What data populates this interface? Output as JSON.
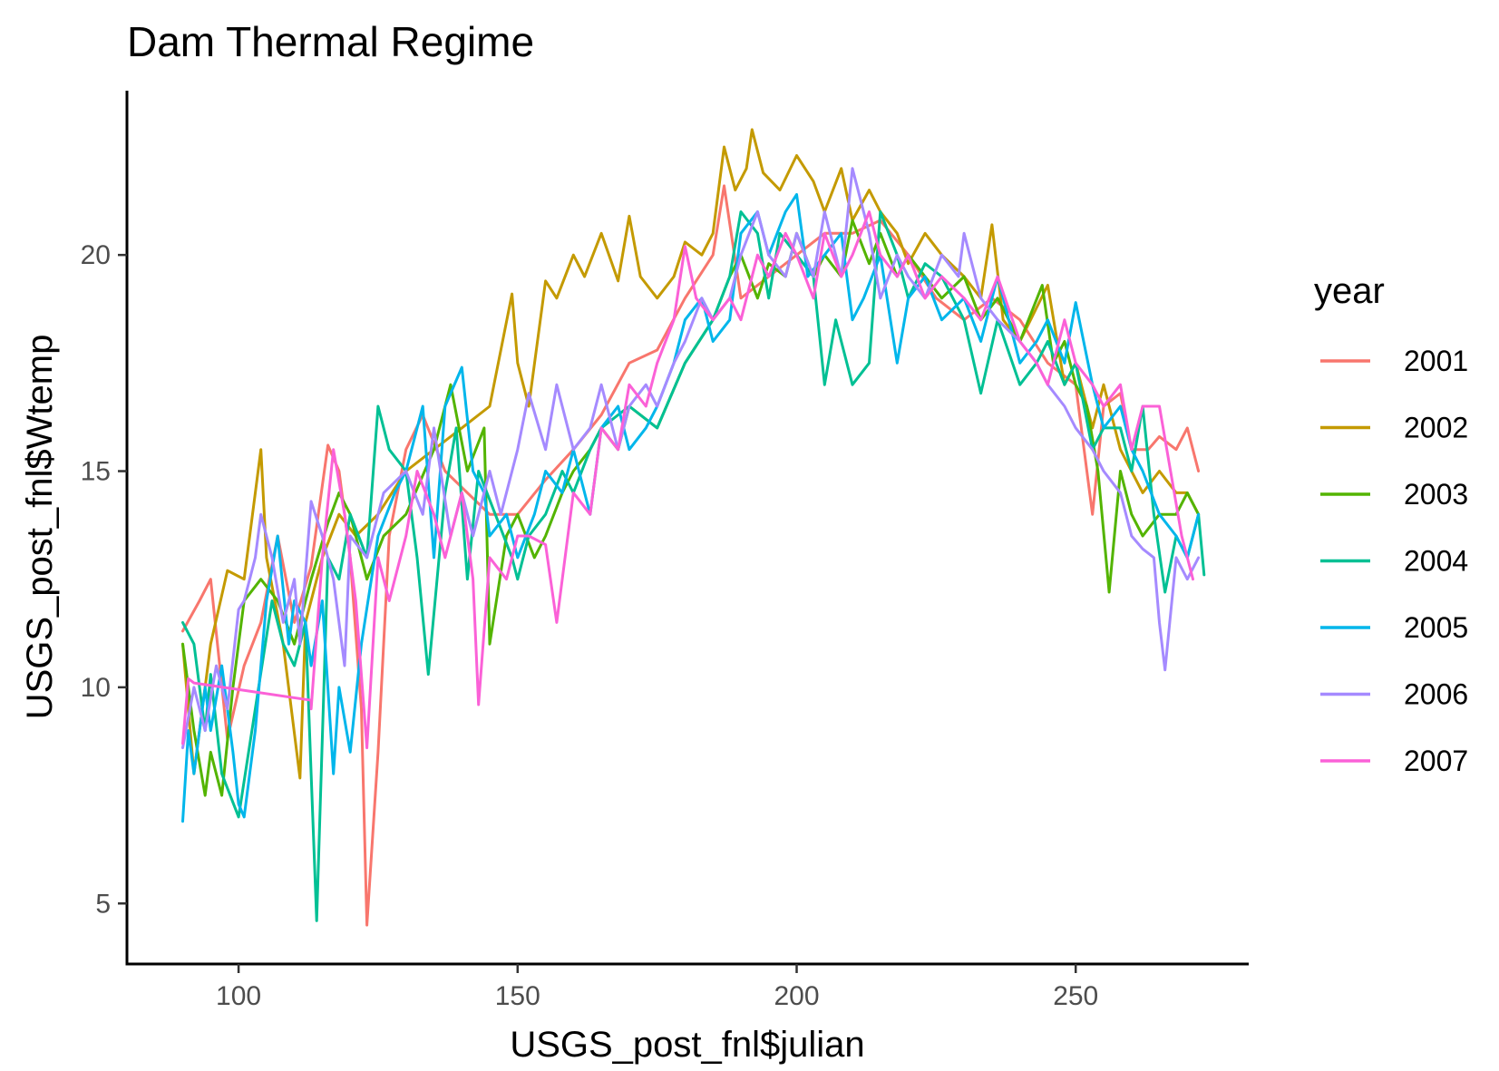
{
  "chart_data": {
    "type": "line",
    "title": "Dam Thermal Regime",
    "xlabel": "USGS_post_fnl$julian",
    "ylabel": "USGS_post_fnl$Wtemp",
    "xlim": [
      80,
      281
    ],
    "ylim": [
      3.6,
      23.8
    ],
    "x_ticks": [
      100,
      150,
      200,
      250
    ],
    "y_ticks": [
      5,
      10,
      15,
      20
    ],
    "x_tick_labels": [
      "100",
      "150",
      "200",
      "250"
    ],
    "y_tick_labels": [
      "5",
      "10",
      "15",
      "20"
    ],
    "grid": false,
    "legend": {
      "title": "year",
      "position": "right"
    },
    "series": [
      {
        "name": "2001",
        "color": "#F8766D",
        "x": [
          90,
          93,
          95,
          98,
          101,
          104,
          107,
          110,
          113,
          116,
          118,
          120,
          122,
          123,
          125,
          127,
          130,
          133,
          137,
          141,
          145,
          150,
          155,
          160,
          165,
          170,
          175,
          180,
          185,
          187,
          190,
          195,
          200,
          205,
          210,
          215,
          220,
          225,
          230,
          235,
          240,
          245,
          250,
          253,
          255,
          258,
          260,
          263,
          265,
          268,
          270,
          272
        ],
        "y": [
          11.3,
          12.0,
          12.5,
          8.8,
          10.5,
          11.5,
          13.5,
          11.5,
          12.8,
          15.6,
          15.0,
          13.0,
          9.5,
          4.5,
          8.5,
          13.5,
          15.5,
          16.3,
          15.0,
          14.5,
          14.0,
          14.0,
          14.8,
          15.5,
          16.3,
          17.5,
          17.8,
          19.0,
          20.0,
          21.6,
          19.0,
          19.5,
          20.0,
          20.5,
          20.5,
          20.8,
          20.0,
          19.0,
          18.5,
          19.0,
          18.5,
          17.5,
          17.0,
          14.0,
          16.5,
          16.8,
          15.5,
          15.5,
          15.8,
          15.5,
          16.0,
          15.0
        ]
      },
      {
        "name": "2002",
        "color": "#C49A00",
        "x": [
          90,
          92,
          95,
          98,
          101,
          104,
          105,
          108,
          111,
          112,
          115,
          118,
          121,
          125,
          130,
          135,
          140,
          145,
          149,
          150,
          152,
          155,
          157,
          160,
          162,
          165,
          168,
          170,
          172,
          175,
          178,
          180,
          183,
          185,
          187,
          189,
          191,
          192,
          194,
          197,
          200,
          203,
          205,
          208,
          210,
          213,
          215,
          218,
          220,
          223,
          226,
          230,
          233,
          235,
          237,
          240,
          245,
          248,
          250,
          253,
          255,
          258,
          262,
          265,
          268,
          270,
          272
        ],
        "y": [
          11.0,
          8.0,
          11.0,
          12.7,
          12.5,
          15.5,
          13.0,
          11.0,
          7.9,
          11.5,
          13.0,
          14.0,
          13.5,
          14.0,
          15.0,
          15.5,
          16.0,
          16.5,
          19.1,
          17.5,
          16.5,
          19.4,
          19.0,
          20.0,
          19.5,
          20.5,
          19.4,
          20.9,
          19.5,
          19.0,
          19.5,
          20.3,
          20.0,
          20.5,
          22.5,
          21.5,
          22.0,
          22.9,
          21.9,
          21.5,
          22.3,
          21.7,
          21.0,
          22.0,
          20.8,
          21.5,
          21.0,
          20.5,
          19.8,
          20.5,
          20.0,
          19.5,
          19.0,
          20.7,
          18.5,
          18.0,
          19.3,
          17.0,
          17.5,
          16.0,
          17.0,
          15.5,
          14.5,
          15.0,
          14.5,
          14.5,
          14.0
        ]
      },
      {
        "name": "2003",
        "color": "#53B400",
        "x": [
          90,
          92,
          94,
          95,
          97,
          99,
          101,
          104,
          107,
          110,
          113,
          116,
          118,
          120,
          123,
          126,
          130,
          135,
          138,
          141,
          144,
          145,
          148,
          150,
          153,
          155,
          158,
          160,
          163,
          165,
          168,
          170,
          175,
          180,
          185,
          188,
          190,
          193,
          195,
          198,
          200,
          203,
          205,
          208,
          210,
          213,
          215,
          218,
          220,
          223,
          226,
          230,
          233,
          236,
          240,
          244,
          246,
          248,
          250,
          252,
          254,
          256,
          258,
          260,
          262,
          265,
          268,
          270,
          272
        ],
        "y": [
          11.0,
          9.0,
          7.5,
          8.5,
          7.5,
          10.0,
          12.0,
          12.5,
          12.0,
          11.0,
          12.5,
          13.8,
          14.5,
          14.0,
          12.5,
          13.5,
          14.0,
          15.5,
          17.0,
          15.0,
          16.0,
          11.0,
          13.5,
          14.0,
          13.0,
          13.5,
          14.5,
          15.0,
          15.5,
          16.0,
          15.5,
          16.5,
          16.0,
          17.5,
          18.5,
          19.5,
          20.0,
          19.0,
          19.8,
          19.5,
          20.5,
          19.5,
          20.0,
          19.5,
          20.8,
          19.8,
          20.5,
          19.5,
          20.0,
          19.5,
          19.0,
          19.5,
          18.5,
          19.0,
          18.0,
          19.3,
          17.5,
          18.0,
          17.0,
          16.5,
          15.0,
          12.2,
          15.0,
          14.0,
          13.5,
          14.0,
          14.0,
          14.5,
          14.0
        ]
      },
      {
        "name": "2004",
        "color": "#00C094",
        "x": [
          90,
          92,
          94,
          95,
          97,
          100,
          103,
          106,
          108,
          110,
          112,
          113,
          114,
          116,
          118,
          120,
          123,
          125,
          127,
          130,
          132,
          134,
          137,
          139,
          141,
          143,
          146,
          149,
          150,
          152,
          155,
          158,
          160,
          163,
          165,
          170,
          175,
          180,
          185,
          188,
          190,
          193,
          195,
          197,
          200,
          203,
          205,
          207,
          210,
          213,
          215,
          218,
          220,
          223,
          226,
          228,
          230,
          233,
          236,
          240,
          243,
          245,
          248,
          250,
          253,
          255,
          258,
          260,
          262,
          264,
          266,
          268,
          270,
          272,
          273
        ],
        "y": [
          11.5,
          11.0,
          9.0,
          10.3,
          8.0,
          7.0,
          9.5,
          12.0,
          11.0,
          10.5,
          11.5,
          8.0,
          4.6,
          13.0,
          12.5,
          14.0,
          13.0,
          16.5,
          15.5,
          15.0,
          13.0,
          10.3,
          14.5,
          16.0,
          12.5,
          15.0,
          14.0,
          13.0,
          12.5,
          13.5,
          14.0,
          15.0,
          14.5,
          15.5,
          16.0,
          16.5,
          16.0,
          17.5,
          18.5,
          19.5,
          21.0,
          20.5,
          19.0,
          20.5,
          20.0,
          19.5,
          17.0,
          18.5,
          17.0,
          17.5,
          21.0,
          20.0,
          19.0,
          19.8,
          19.5,
          19.0,
          18.5,
          16.8,
          18.5,
          17.0,
          17.5,
          18.0,
          17.0,
          17.5,
          15.5,
          16.0,
          16.0,
          15.0,
          16.5,
          14.0,
          12.2,
          13.5,
          13.0,
          14.0,
          12.6
        ]
      },
      {
        "name": "2005",
        "color": "#00B6EB",
        "x": [
          90,
          91,
          92,
          94,
          95,
          97,
          99,
          100,
          101,
          103,
          105,
          107,
          109,
          110,
          112,
          113,
          115,
          117,
          118,
          120,
          122,
          125,
          128,
          130,
          133,
          135,
          137,
          140,
          142,
          144,
          145,
          148,
          150,
          153,
          155,
          158,
          160,
          163,
          165,
          168,
          170,
          173,
          175,
          178,
          180,
          183,
          185,
          188,
          190,
          193,
          195,
          198,
          200,
          202,
          205,
          208,
          210,
          212,
          215,
          218,
          220,
          223,
          226,
          230,
          233,
          236,
          240,
          243,
          245,
          248,
          250,
          253,
          255,
          258,
          260,
          262,
          265,
          268,
          270,
          272
        ],
        "y": [
          6.9,
          9.0,
          8.0,
          10.0,
          9.0,
          10.5,
          8.5,
          7.3,
          7.0,
          9.0,
          12.0,
          13.5,
          11.0,
          12.0,
          11.5,
          10.5,
          12.0,
          8.0,
          10.0,
          8.5,
          11.0,
          13.5,
          14.5,
          15.0,
          16.5,
          13.0,
          16.5,
          17.4,
          15.0,
          14.5,
          13.5,
          14.0,
          13.0,
          14.0,
          15.0,
          14.5,
          15.5,
          14.0,
          16.0,
          16.5,
          15.5,
          16.0,
          16.5,
          17.5,
          18.5,
          19.0,
          18.0,
          18.5,
          20.5,
          21.0,
          20.0,
          21.0,
          21.4,
          19.5,
          20.0,
          20.5,
          18.5,
          19.0,
          20.0,
          17.5,
          19.0,
          19.5,
          18.5,
          19.0,
          18.0,
          19.5,
          17.5,
          18.0,
          18.5,
          17.5,
          18.9,
          17.0,
          16.0,
          16.5,
          15.5,
          15.0,
          14.0,
          13.5,
          13.0,
          14.0
        ]
      },
      {
        "name": "2006",
        "color": "#A58AFF",
        "x": [
          90,
          92,
          94,
          96,
          98,
          100,
          101,
          103,
          104,
          106,
          108,
          110,
          111,
          113,
          115,
          117,
          119,
          120,
          123,
          126,
          130,
          133,
          135,
          138,
          140,
          142,
          145,
          147,
          150,
          152,
          155,
          157,
          160,
          163,
          165,
          168,
          170,
          173,
          175,
          178,
          180,
          183,
          185,
          188,
          190,
          193,
          195,
          198,
          200,
          203,
          205,
          208,
          210,
          213,
          215,
          218,
          220,
          223,
          226,
          229,
          230,
          233,
          236,
          240,
          243,
          245,
          248,
          250,
          253,
          255,
          258,
          260,
          262,
          264,
          265,
          266,
          268,
          270,
          272
        ],
        "y": [
          8.6,
          10.0,
          9.0,
          10.5,
          9.5,
          11.8,
          12.0,
          13.0,
          14.0,
          13.0,
          11.5,
          12.5,
          11.0,
          14.3,
          13.5,
          12.5,
          10.5,
          13.5,
          13.0,
          14.5,
          15.0,
          14.0,
          16.0,
          13.5,
          14.5,
          13.5,
          15.0,
          14.0,
          15.5,
          16.8,
          15.5,
          17.0,
          15.5,
          16.0,
          17.0,
          15.5,
          16.5,
          17.0,
          16.5,
          17.5,
          18.0,
          19.0,
          18.5,
          19.0,
          20.0,
          21.0,
          20.0,
          19.5,
          20.5,
          19.5,
          21.0,
          19.5,
          22.0,
          20.5,
          19.0,
          20.0,
          19.5,
          19.0,
          20.0,
          19.5,
          20.5,
          19.0,
          18.5,
          18.0,
          17.5,
          17.0,
          16.5,
          16.0,
          15.5,
          15.0,
          14.5,
          13.5,
          13.2,
          13.0,
          11.5,
          10.4,
          13.0,
          12.5,
          13.0
        ]
      },
      {
        "name": "2007",
        "color": "#FB61D7",
        "x": [
          90,
          91,
          92,
          113,
          113,
          115,
          117,
          119,
          121,
          123,
          125,
          127,
          130,
          132,
          135,
          137,
          140,
          142,
          143,
          145,
          148,
          150,
          152,
          155,
          157,
          160,
          163,
          165,
          168,
          170,
          173,
          175,
          178,
          180,
          182,
          185,
          188,
          190,
          193,
          195,
          198,
          200,
          203,
          205,
          208,
          210,
          213,
          215,
          218,
          220,
          223,
          226,
          230,
          233,
          236,
          240,
          243,
          245,
          248,
          250,
          253,
          255,
          258,
          260,
          262,
          265,
          267,
          269,
          271
        ],
        "y": [
          8.7,
          10.2,
          10.1,
          9.7,
          9.5,
          13.0,
          15.5,
          14.0,
          12.0,
          8.6,
          13.0,
          12.0,
          13.5,
          15.0,
          14.0,
          13.0,
          14.5,
          12.5,
          9.6,
          13.0,
          12.5,
          13.5,
          13.5,
          13.3,
          11.5,
          14.5,
          14.0,
          16.0,
          15.5,
          17.0,
          16.5,
          17.5,
          18.5,
          20.2,
          19.0,
          18.5,
          19.0,
          18.5,
          20.0,
          19.5,
          20.5,
          20.0,
          19.0,
          20.5,
          19.5,
          20.0,
          21.0,
          20.0,
          19.5,
          20.0,
          19.0,
          19.5,
          19.0,
          18.5,
          19.5,
          18.0,
          17.5,
          17.0,
          18.5,
          17.5,
          17.0,
          16.5,
          17.0,
          15.5,
          16.5,
          16.5,
          15.0,
          13.5,
          12.5
        ]
      }
    ]
  }
}
